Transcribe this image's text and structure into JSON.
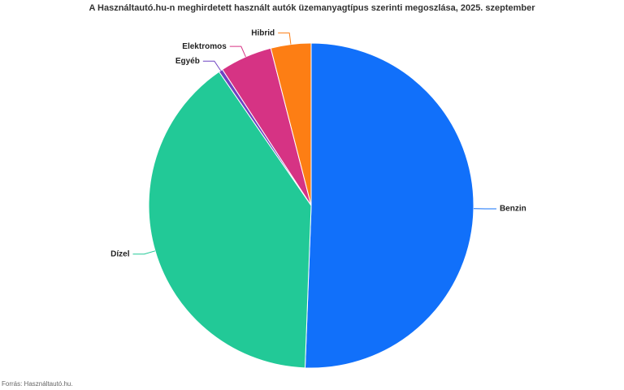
{
  "chart_data": {
    "type": "pie",
    "title": "A Használtautó.hu-n meghirdetett használt autók üzemanyagtípus szerinti megoszlása, 2025. szeptember",
    "categories": [
      "Benzin",
      "Dízel",
      "Egyéb",
      "Elektromos",
      "Hibrid"
    ],
    "values": [
      50.6,
      39.8,
      0.4,
      5.2,
      4.0
    ],
    "colors": [
      "#1170fa",
      "#22c997",
      "#6f42c1",
      "#d63384",
      "#fd7e14"
    ],
    "source": "Forrás: Használtautó.hu."
  }
}
